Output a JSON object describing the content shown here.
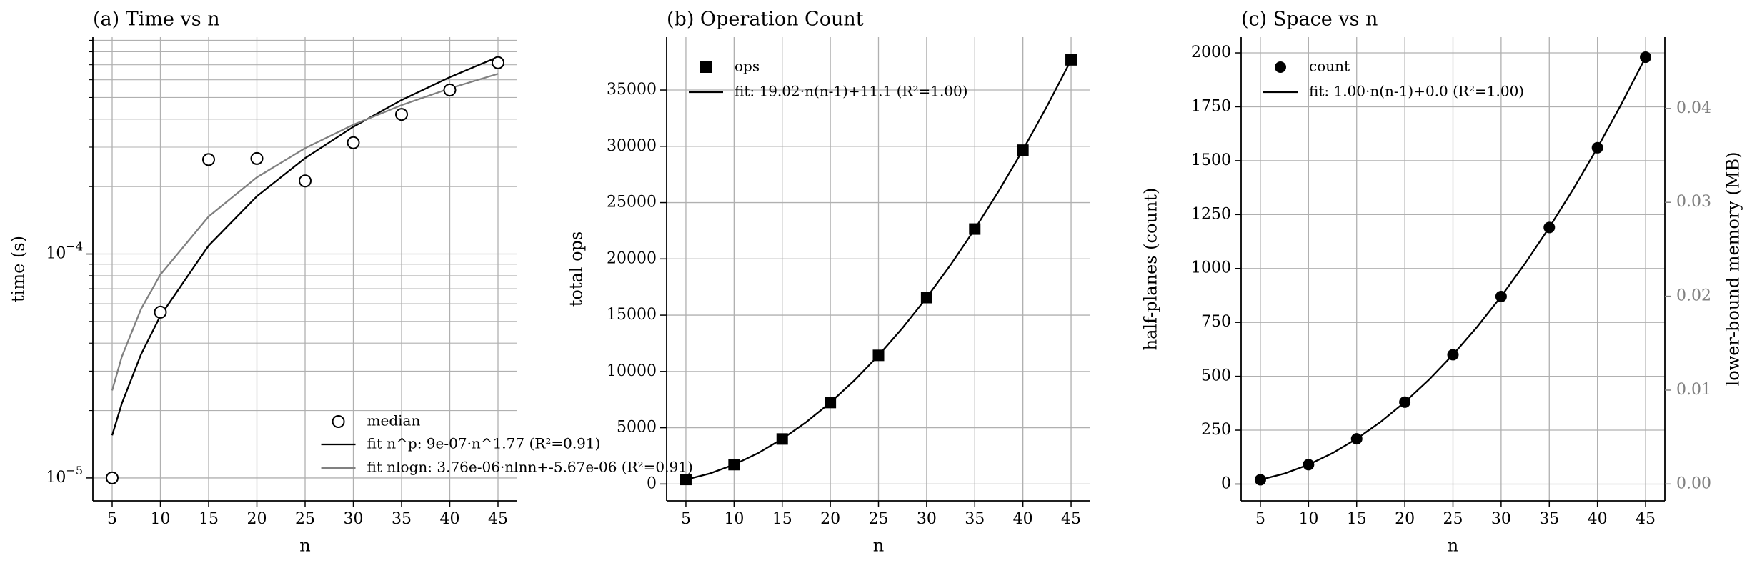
{
  "chart_data": [
    {
      "type": "line",
      "title": "(a) Time vs n",
      "xlabel": "n",
      "ylabel": "time (s)",
      "yscale": "log",
      "grid": true,
      "legend": "lower right",
      "xlim": [
        3,
        47
      ],
      "xticks": [
        5,
        10,
        15,
        20,
        25,
        30,
        35,
        40,
        45
      ],
      "ylim": [
        7.9e-06,
        0.00093
      ],
      "yticks": [
        {
          "value": 1e-05,
          "label": "10",
          "exponent": "−5"
        },
        {
          "value": 0.0001,
          "label": "10",
          "exponent": "−4"
        }
      ],
      "minor_yticks": [
        2e-05,
        3e-05,
        4e-05,
        5e-05,
        6e-05,
        7e-05,
        8e-05,
        9e-05,
        0.0002,
        0.0003,
        0.0004,
        0.0005,
        0.0006,
        0.0007,
        0.0008,
        0.0009
      ],
      "series": [
        {
          "name": "median",
          "style": "marker",
          "marker": "open-circle",
          "color": "#000000",
          "x": [
            5,
            10,
            15,
            20,
            25,
            30,
            35,
            40,
            45
          ],
          "values": [
            1e-05,
            5.5e-05,
            0.000264,
            0.000267,
            0.000212,
            0.000314,
            0.00042,
            0.00054,
            0.000715
          ]
        },
        {
          "name": "fit n^p: 9e-07·n^1.77 (R²=0.91)",
          "style": "line",
          "color": "#000000",
          "x": [
            5,
            6,
            8,
            10,
            15,
            20,
            25,
            30,
            35,
            40,
            45
          ],
          "values": [
            1.55e-05,
            2.15e-05,
            3.57e-05,
            5.3e-05,
            0.000109,
            0.000181,
            0.000268,
            0.00037,
            0.000487,
            0.000616,
            0.000759
          ]
        },
        {
          "name": "fit nlogn: 3.76e-06·nlnn+-5.67e-06 (R²=0.91)",
          "style": "line",
          "color": "#808080",
          "x": [
            5,
            6,
            8,
            10,
            15,
            20,
            25,
            30,
            35,
            40,
            45
          ],
          "values": [
            2.46e-05,
            3.48e-05,
            5.69e-05,
            8.09e-05,
            0.000147,
            0.00022,
            0.000297,
            0.000378,
            0.000462,
            0.000549,
            0.000638
          ]
        }
      ]
    },
    {
      "type": "line",
      "title": "(b) Operation Count",
      "xlabel": "n",
      "ylabel": "total ops",
      "grid": true,
      "legend": "upper left",
      "xlim": [
        3,
        47
      ],
      "xticks": [
        5,
        10,
        15,
        20,
        25,
        30,
        35,
        40,
        45
      ],
      "ylim": [
        -1500,
        39700
      ],
      "yticks": [
        0,
        5000,
        10000,
        15000,
        20000,
        25000,
        30000,
        35000
      ],
      "series": [
        {
          "name": "ops",
          "style": "marker",
          "marker": "square",
          "color": "#000000",
          "x": [
            5,
            10,
            15,
            20,
            25,
            30,
            35,
            40,
            45
          ],
          "values": [
            400,
            1720,
            4000,
            7240,
            11430,
            16560,
            22650,
            29660,
            37680
          ]
        },
        {
          "name": "fit: 19.02·n(n-1)+11.1 (R²=1.00)",
          "style": "line",
          "color": "#000000",
          "x": [
            5,
            7.5,
            10,
            12.5,
            15,
            17.5,
            20,
            22.5,
            25,
            27.5,
            30,
            32.5,
            35,
            37.5,
            40,
            42.5,
            45
          ],
          "values": [
            391.5,
            938.3,
            1722.9,
            2745.2,
            4005.3,
            5503.1,
            7238.7,
            9212.0,
            11423.1,
            13871.9,
            16558.5,
            19482.8,
            22644.9,
            26044.7,
            29682.3,
            33557.6,
            37670.7
          ]
        }
      ]
    },
    {
      "type": "line",
      "title": "(c) Space vs n",
      "xlabel": "n",
      "ylabel": "half-planes (count)",
      "grid": true,
      "legend": "upper left",
      "xlim": [
        3,
        47
      ],
      "xticks": [
        5,
        10,
        15,
        20,
        25,
        30,
        35,
        40,
        45
      ],
      "ylim": [
        -78,
        2073
      ],
      "yticks": [
        0,
        250,
        500,
        750,
        1000,
        1250,
        1500,
        1750,
        2000
      ],
      "y2label": "lower-bound memory (MB)",
      "y2color": "#808080",
      "y2lim": [
        -0.0018,
        0.0476
      ],
      "y2ticks": [
        {
          "value": 0,
          "label": "0.00"
        },
        {
          "value": 0.01,
          "label": "0.01"
        },
        {
          "value": 0.02,
          "label": "0.02"
        },
        {
          "value": 0.03,
          "label": "0.03"
        },
        {
          "value": 0.04,
          "label": "0.04"
        }
      ],
      "series": [
        {
          "name": "count",
          "style": "marker",
          "marker": "circle",
          "color": "#000000",
          "x": [
            5,
            10,
            15,
            20,
            25,
            30,
            35,
            40,
            45
          ],
          "values": [
            20,
            90,
            210,
            380,
            600,
            870,
            1190,
            1560,
            1980
          ]
        },
        {
          "name": "fit: 1.00·n(n-1)+0.0 (R²=1.00)",
          "style": "line",
          "color": "#000000",
          "x": [
            5,
            7.5,
            10,
            12.5,
            15,
            17.5,
            20,
            22.5,
            25,
            27.5,
            30,
            32.5,
            35,
            37.5,
            40,
            42.5,
            45
          ],
          "values": [
            20,
            48.75,
            90,
            143.75,
            210,
            288.75,
            380,
            483.75,
            600,
            728.75,
            870,
            1023.75,
            1190,
            1368.75,
            1560,
            1763.75,
            1980
          ]
        }
      ]
    }
  ]
}
